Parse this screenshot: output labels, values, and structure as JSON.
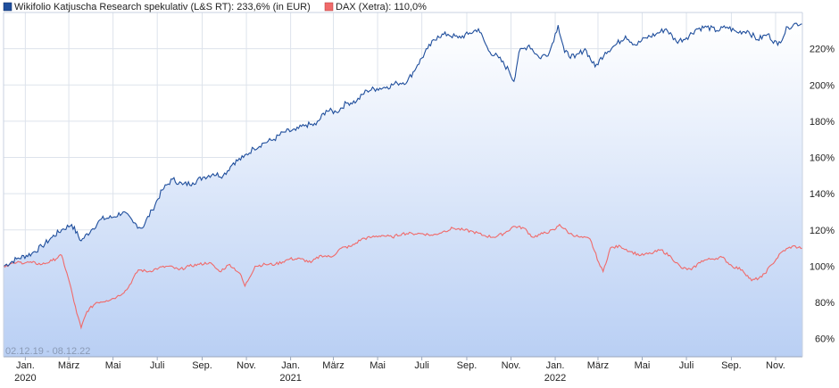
{
  "chart_data": {
    "type": "line",
    "date_range_label": "02.12.19 - 08.12.22",
    "x_range": [
      "2019-12-02",
      "2022-12-08"
    ],
    "ylim": [
      50,
      240
    ],
    "y_ticks": [
      {
        "value": 60,
        "label": "60%"
      },
      {
        "value": 80,
        "label": "80%"
      },
      {
        "value": 100,
        "label": "100%"
      },
      {
        "value": 120,
        "label": "120%"
      },
      {
        "value": 140,
        "label": "140%"
      },
      {
        "value": 160,
        "label": "160%"
      },
      {
        "value": 180,
        "label": "180%"
      },
      {
        "value": 200,
        "label": "200%"
      },
      {
        "value": 220,
        "label": "220%"
      }
    ],
    "x_ticks": [
      {
        "date": "2020-01-01",
        "label": "Jan.",
        "year": "2020"
      },
      {
        "date": "2020-03-01",
        "label": "März",
        "year": ""
      },
      {
        "date": "2020-05-01",
        "label": "Mai",
        "year": ""
      },
      {
        "date": "2020-07-01",
        "label": "Juli",
        "year": ""
      },
      {
        "date": "2020-09-01",
        "label": "Sep.",
        "year": ""
      },
      {
        "date": "2020-11-01",
        "label": "Nov.",
        "year": ""
      },
      {
        "date": "2021-01-01",
        "label": "Jan.",
        "year": "2021"
      },
      {
        "date": "2021-03-01",
        "label": "März",
        "year": ""
      },
      {
        "date": "2021-05-01",
        "label": "Mai",
        "year": ""
      },
      {
        "date": "2021-07-01",
        "label": "Juli",
        "year": ""
      },
      {
        "date": "2021-09-01",
        "label": "Sep.",
        "year": ""
      },
      {
        "date": "2021-11-01",
        "label": "Nov.",
        "year": ""
      },
      {
        "date": "2022-01-01",
        "label": "Jan.",
        "year": "2022"
      },
      {
        "date": "2022-03-01",
        "label": "März",
        "year": ""
      },
      {
        "date": "2022-05-01",
        "label": "Mai",
        "year": ""
      },
      {
        "date": "2022-07-01",
        "label": "Juli",
        "year": ""
      },
      {
        "date": "2022-09-01",
        "label": "Sep.",
        "year": ""
      },
      {
        "date": "2022-11-01",
        "label": "Nov.",
        "year": ""
      }
    ],
    "grid": true,
    "legend_position": "top-left",
    "series": [
      {
        "name": "Wikifolio Katjuscha Research spekulativ (L&S RT): 233,6% (in EUR)",
        "color": "#1f4e9c",
        "fill": true,
        "points": [
          [
            "2019-12-02",
            100
          ],
          [
            "2019-12-20",
            104
          ],
          [
            "2020-01-10",
            107
          ],
          [
            "2020-01-24",
            111
          ],
          [
            "2020-02-07",
            116
          ],
          [
            "2020-02-20",
            120
          ],
          [
            "2020-03-05",
            123
          ],
          [
            "2020-03-18",
            114
          ],
          [
            "2020-04-01",
            120
          ],
          [
            "2020-04-15",
            126
          ],
          [
            "2020-05-01",
            127
          ],
          [
            "2020-05-15",
            130
          ],
          [
            "2020-05-29",
            124
          ],
          [
            "2020-06-10",
            121
          ],
          [
            "2020-06-24",
            131
          ],
          [
            "2020-07-08",
            142
          ],
          [
            "2020-07-22",
            148
          ],
          [
            "2020-08-05",
            145
          ],
          [
            "2020-08-19",
            146
          ],
          [
            "2020-09-02",
            149
          ],
          [
            "2020-09-16",
            151
          ],
          [
            "2020-09-30",
            150
          ],
          [
            "2020-10-14",
            157
          ],
          [
            "2020-10-28",
            160
          ],
          [
            "2020-11-11",
            165
          ],
          [
            "2020-11-25",
            168
          ],
          [
            "2020-12-09",
            170
          ],
          [
            "2020-12-23",
            174
          ],
          [
            "2021-01-08",
            175
          ],
          [
            "2021-01-22",
            178
          ],
          [
            "2021-02-05",
            178
          ],
          [
            "2021-02-19",
            186
          ],
          [
            "2021-03-05",
            185
          ],
          [
            "2021-03-19",
            190
          ],
          [
            "2021-04-02",
            191
          ],
          [
            "2021-04-16",
            197
          ],
          [
            "2021-04-30",
            198
          ],
          [
            "2021-05-14",
            199
          ],
          [
            "2021-05-28",
            201
          ],
          [
            "2021-06-11",
            202
          ],
          [
            "2021-06-25",
            211
          ],
          [
            "2021-07-09",
            220
          ],
          [
            "2021-07-23",
            227
          ],
          [
            "2021-08-06",
            228
          ],
          [
            "2021-08-20",
            226
          ],
          [
            "2021-09-03",
            228
          ],
          [
            "2021-09-17",
            231
          ],
          [
            "2021-10-01",
            219
          ],
          [
            "2021-10-15",
            215
          ],
          [
            "2021-10-29",
            208
          ],
          [
            "2021-11-05",
            202
          ],
          [
            "2021-11-12",
            218
          ],
          [
            "2021-11-26",
            222
          ],
          [
            "2021-12-10",
            215
          ],
          [
            "2021-12-24",
            218
          ],
          [
            "2022-01-05",
            233
          ],
          [
            "2022-01-14",
            218
          ],
          [
            "2022-01-28",
            215
          ],
          [
            "2022-02-11",
            220
          ],
          [
            "2022-02-25",
            210
          ],
          [
            "2022-03-11",
            218
          ],
          [
            "2022-03-25",
            222
          ],
          [
            "2022-04-08",
            227
          ],
          [
            "2022-04-22",
            222
          ],
          [
            "2022-05-06",
            226
          ],
          [
            "2022-05-20",
            228
          ],
          [
            "2022-06-03",
            231
          ],
          [
            "2022-06-17",
            224
          ],
          [
            "2022-07-01",
            226
          ],
          [
            "2022-07-15",
            231
          ],
          [
            "2022-07-29",
            232
          ],
          [
            "2022-08-12",
            230
          ],
          [
            "2022-08-26",
            232
          ],
          [
            "2022-09-09",
            229
          ],
          [
            "2022-09-23",
            230
          ],
          [
            "2022-10-07",
            225
          ],
          [
            "2022-10-21",
            228
          ],
          [
            "2022-11-04",
            222
          ],
          [
            "2022-11-18",
            232
          ],
          [
            "2022-11-30",
            234
          ],
          [
            "2022-12-08",
            233.6
          ]
        ]
      },
      {
        "name": "DAX (Xetra): 110,0%",
        "color": "#f06a6a",
        "fill": false,
        "points": [
          [
            "2019-12-02",
            100
          ],
          [
            "2019-12-20",
            102
          ],
          [
            "2020-01-10",
            102
          ],
          [
            "2020-01-24",
            101
          ],
          [
            "2020-02-07",
            103
          ],
          [
            "2020-02-20",
            106
          ],
          [
            "2020-03-02",
            91
          ],
          [
            "2020-03-12",
            74
          ],
          [
            "2020-03-18",
            66
          ],
          [
            "2020-03-26",
            75
          ],
          [
            "2020-04-08",
            80
          ],
          [
            "2020-04-22",
            81
          ],
          [
            "2020-05-06",
            83
          ],
          [
            "2020-05-20",
            87
          ],
          [
            "2020-06-05",
            98
          ],
          [
            "2020-06-19",
            97
          ],
          [
            "2020-07-03",
            99
          ],
          [
            "2020-07-17",
            100
          ],
          [
            "2020-07-31",
            98
          ],
          [
            "2020-08-14",
            100
          ],
          [
            "2020-08-28",
            101
          ],
          [
            "2020-09-11",
            102
          ],
          [
            "2020-09-25",
            97
          ],
          [
            "2020-10-09",
            101
          ],
          [
            "2020-10-23",
            96
          ],
          [
            "2020-10-30",
            89
          ],
          [
            "2020-11-13",
            100
          ],
          [
            "2020-11-27",
            101
          ],
          [
            "2020-12-11",
            101
          ],
          [
            "2020-12-31",
            104
          ],
          [
            "2021-01-15",
            104
          ],
          [
            "2021-01-29",
            102
          ],
          [
            "2021-02-12",
            106
          ],
          [
            "2021-02-26",
            105
          ],
          [
            "2021-03-12",
            110
          ],
          [
            "2021-03-26",
            111
          ],
          [
            "2021-04-09",
            115
          ],
          [
            "2021-04-23",
            116
          ],
          [
            "2021-05-07",
            117
          ],
          [
            "2021-05-21",
            116
          ],
          [
            "2021-06-04",
            118
          ],
          [
            "2021-06-18",
            118
          ],
          [
            "2021-07-02",
            118
          ],
          [
            "2021-07-16",
            117
          ],
          [
            "2021-07-30",
            119
          ],
          [
            "2021-08-13",
            121
          ],
          [
            "2021-08-27",
            120
          ],
          [
            "2021-09-10",
            119
          ],
          [
            "2021-09-24",
            117
          ],
          [
            "2021-10-08",
            116
          ],
          [
            "2021-10-22",
            118
          ],
          [
            "2021-11-05",
            122
          ],
          [
            "2021-11-19",
            121
          ],
          [
            "2021-12-01",
            116
          ],
          [
            "2021-12-15",
            118
          ],
          [
            "2021-12-31",
            120
          ],
          [
            "2022-01-07",
            123
          ],
          [
            "2022-01-21",
            118
          ],
          [
            "2022-02-04",
            116
          ],
          [
            "2022-02-18",
            115
          ],
          [
            "2022-03-04",
            100
          ],
          [
            "2022-03-08",
            97
          ],
          [
            "2022-03-18",
            110
          ],
          [
            "2022-04-01",
            111
          ],
          [
            "2022-04-15",
            108
          ],
          [
            "2022-04-29",
            106
          ],
          [
            "2022-05-13",
            107
          ],
          [
            "2022-05-27",
            109
          ],
          [
            "2022-06-10",
            105
          ],
          [
            "2022-06-24",
            99
          ],
          [
            "2022-07-08",
            98
          ],
          [
            "2022-07-22",
            103
          ],
          [
            "2022-08-05",
            104
          ],
          [
            "2022-08-19",
            105
          ],
          [
            "2022-09-02",
            100
          ],
          [
            "2022-09-16",
            98
          ],
          [
            "2022-09-29",
            92
          ],
          [
            "2022-10-13",
            94
          ],
          [
            "2022-10-27",
            101
          ],
          [
            "2022-11-10",
            108
          ],
          [
            "2022-11-24",
            111
          ],
          [
            "2022-12-08",
            110
          ]
        ]
      }
    ]
  }
}
